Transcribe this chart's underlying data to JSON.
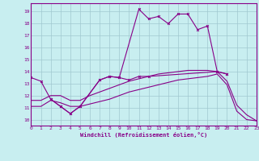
{
  "xlabel": "Windchill (Refroidissement éolien,°C)",
  "bg_color": "#c8eef0",
  "grid_color": "#a0c8d0",
  "line_color": "#880088",
  "xlim": [
    0,
    23
  ],
  "ylim": [
    9.5,
    19.7
  ],
  "xticks": [
    0,
    1,
    2,
    3,
    4,
    5,
    6,
    7,
    8,
    9,
    10,
    11,
    12,
    13,
    14,
    15,
    16,
    17,
    18,
    19,
    20,
    21,
    22,
    23
  ],
  "yticks": [
    10,
    11,
    12,
    13,
    14,
    15,
    16,
    17,
    18,
    19
  ],
  "line1_x": [
    0,
    1,
    2,
    3,
    4,
    5,
    7,
    8,
    9,
    11,
    12,
    13,
    14,
    15,
    16,
    17,
    18,
    19,
    20
  ],
  "line1_y": [
    13.5,
    13.2,
    11.7,
    11.1,
    10.5,
    11.1,
    13.3,
    13.6,
    13.5,
    19.2,
    18.4,
    18.6,
    18.0,
    18.8,
    18.8,
    17.5,
    17.8,
    14.0,
    13.8
  ],
  "line2_x": [
    2,
    3,
    4,
    5,
    7,
    8,
    9,
    10,
    11,
    12,
    19,
    20
  ],
  "line2_y": [
    11.7,
    11.1,
    10.5,
    11.1,
    13.3,
    13.6,
    13.5,
    13.3,
    13.6,
    13.6,
    14.0,
    13.8
  ],
  "line3_x": [
    0,
    1,
    2,
    3,
    4,
    5,
    6,
    7,
    8,
    9,
    10,
    11,
    12,
    13,
    14,
    15,
    16,
    17,
    18,
    19,
    20,
    21,
    22,
    23
  ],
  "line3_y": [
    11.1,
    11.1,
    11.6,
    11.4,
    11.1,
    11.1,
    11.3,
    11.5,
    11.7,
    12.0,
    12.3,
    12.5,
    12.7,
    12.9,
    13.1,
    13.3,
    13.4,
    13.5,
    13.6,
    13.8,
    12.9,
    10.7,
    10.0,
    9.9
  ],
  "line4_x": [
    0,
    1,
    2,
    3,
    4,
    5,
    6,
    7,
    8,
    9,
    10,
    11,
    12,
    13,
    14,
    15,
    16,
    17,
    18,
    19,
    20,
    21,
    22,
    23
  ],
  "line4_y": [
    11.6,
    11.6,
    12.0,
    12.0,
    11.6,
    11.6,
    12.0,
    12.3,
    12.6,
    12.9,
    13.2,
    13.4,
    13.6,
    13.8,
    13.9,
    14.0,
    14.1,
    14.1,
    14.1,
    14.0,
    13.2,
    11.2,
    10.4,
    9.9
  ]
}
